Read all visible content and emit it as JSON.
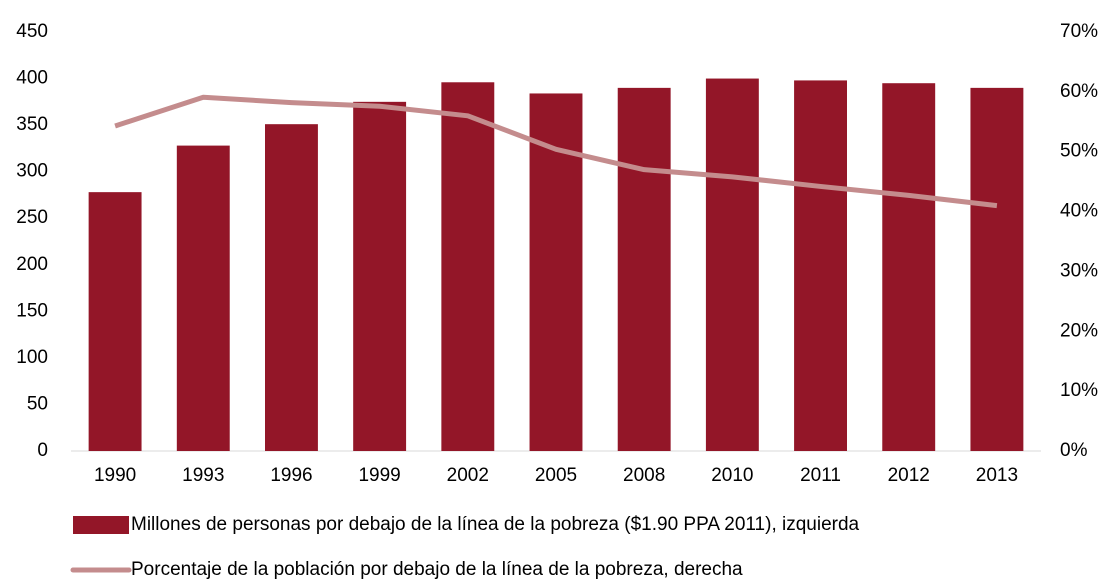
{
  "chart_data": {
    "type": "bar_line",
    "categories": [
      "1990",
      "1993",
      "1996",
      "1999",
      "2002",
      "2005",
      "2008",
      "2010",
      "2011",
      "2012",
      "2013"
    ],
    "series": [
      {
        "name": "Millones de personas por debajo de la línea de la pobreza ($1.90 PPA 2011), izquierda",
        "type": "bar",
        "color": "#931628",
        "values": [
          278,
          328,
          351,
          375,
          396,
          384,
          390,
          400,
          398,
          395,
          390
        ]
      },
      {
        "name": "Porcentaje de la población por debajo de la línea de la pobreza, derecha",
        "type": "line",
        "axis": "y2",
        "color": "#c48c8d",
        "values": [
          54.3,
          59.1,
          58.2,
          57.6,
          56.0,
          50.4,
          47.0,
          45.8,
          44.2,
          42.7,
          41.0
        ]
      }
    ],
    "ylim": [
      0,
      450
    ],
    "yticks": [
      0,
      50,
      100,
      150,
      200,
      250,
      300,
      350,
      400,
      450
    ],
    "y2lim": [
      0,
      70
    ],
    "y2ticks": [
      {
        "value": 0,
        "label": "0%"
      },
      {
        "value": 10,
        "label": "10%"
      },
      {
        "value": 20,
        "label": "20%"
      },
      {
        "value": 30,
        "label": "30%"
      },
      {
        "value": 40,
        "label": "40%"
      },
      {
        "value": 50,
        "label": "50%"
      },
      {
        "value": 60,
        "label": "60%"
      },
      {
        "value": 70,
        "label": "70%"
      }
    ],
    "grid": false,
    "legend": "bottom"
  }
}
